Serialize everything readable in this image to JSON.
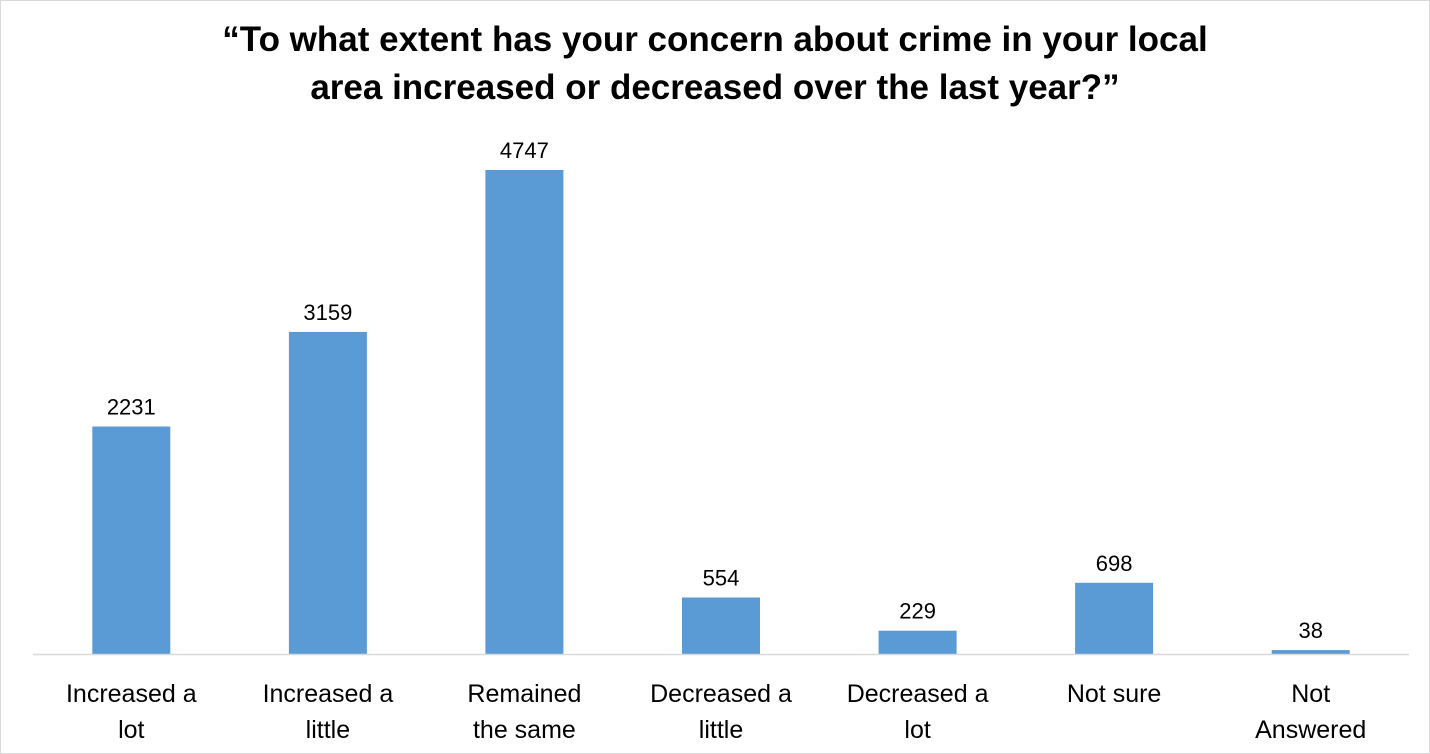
{
  "chart_data": {
    "type": "bar",
    "title_lines": [
      "“To what extent has your concern about crime in your local",
      "area increased or decreased over the last year?”"
    ],
    "categories": [
      [
        "Increased a",
        "lot"
      ],
      [
        "Increased a",
        "little"
      ],
      [
        "Remained",
        "the same"
      ],
      [
        "Decreased a",
        "little"
      ],
      [
        "Decreased a",
        "lot"
      ],
      [
        "Not sure"
      ],
      [
        "Not",
        "Answered"
      ]
    ],
    "values": [
      2231,
      3159,
      4747,
      554,
      229,
      698,
      38
    ],
    "ylim": [
      0,
      5000
    ],
    "grid": false,
    "show_data_labels": true,
    "xlabel": "",
    "ylabel": "",
    "bar_color": "#5b9bd5",
    "axis_color": "#d9d9d9"
  }
}
